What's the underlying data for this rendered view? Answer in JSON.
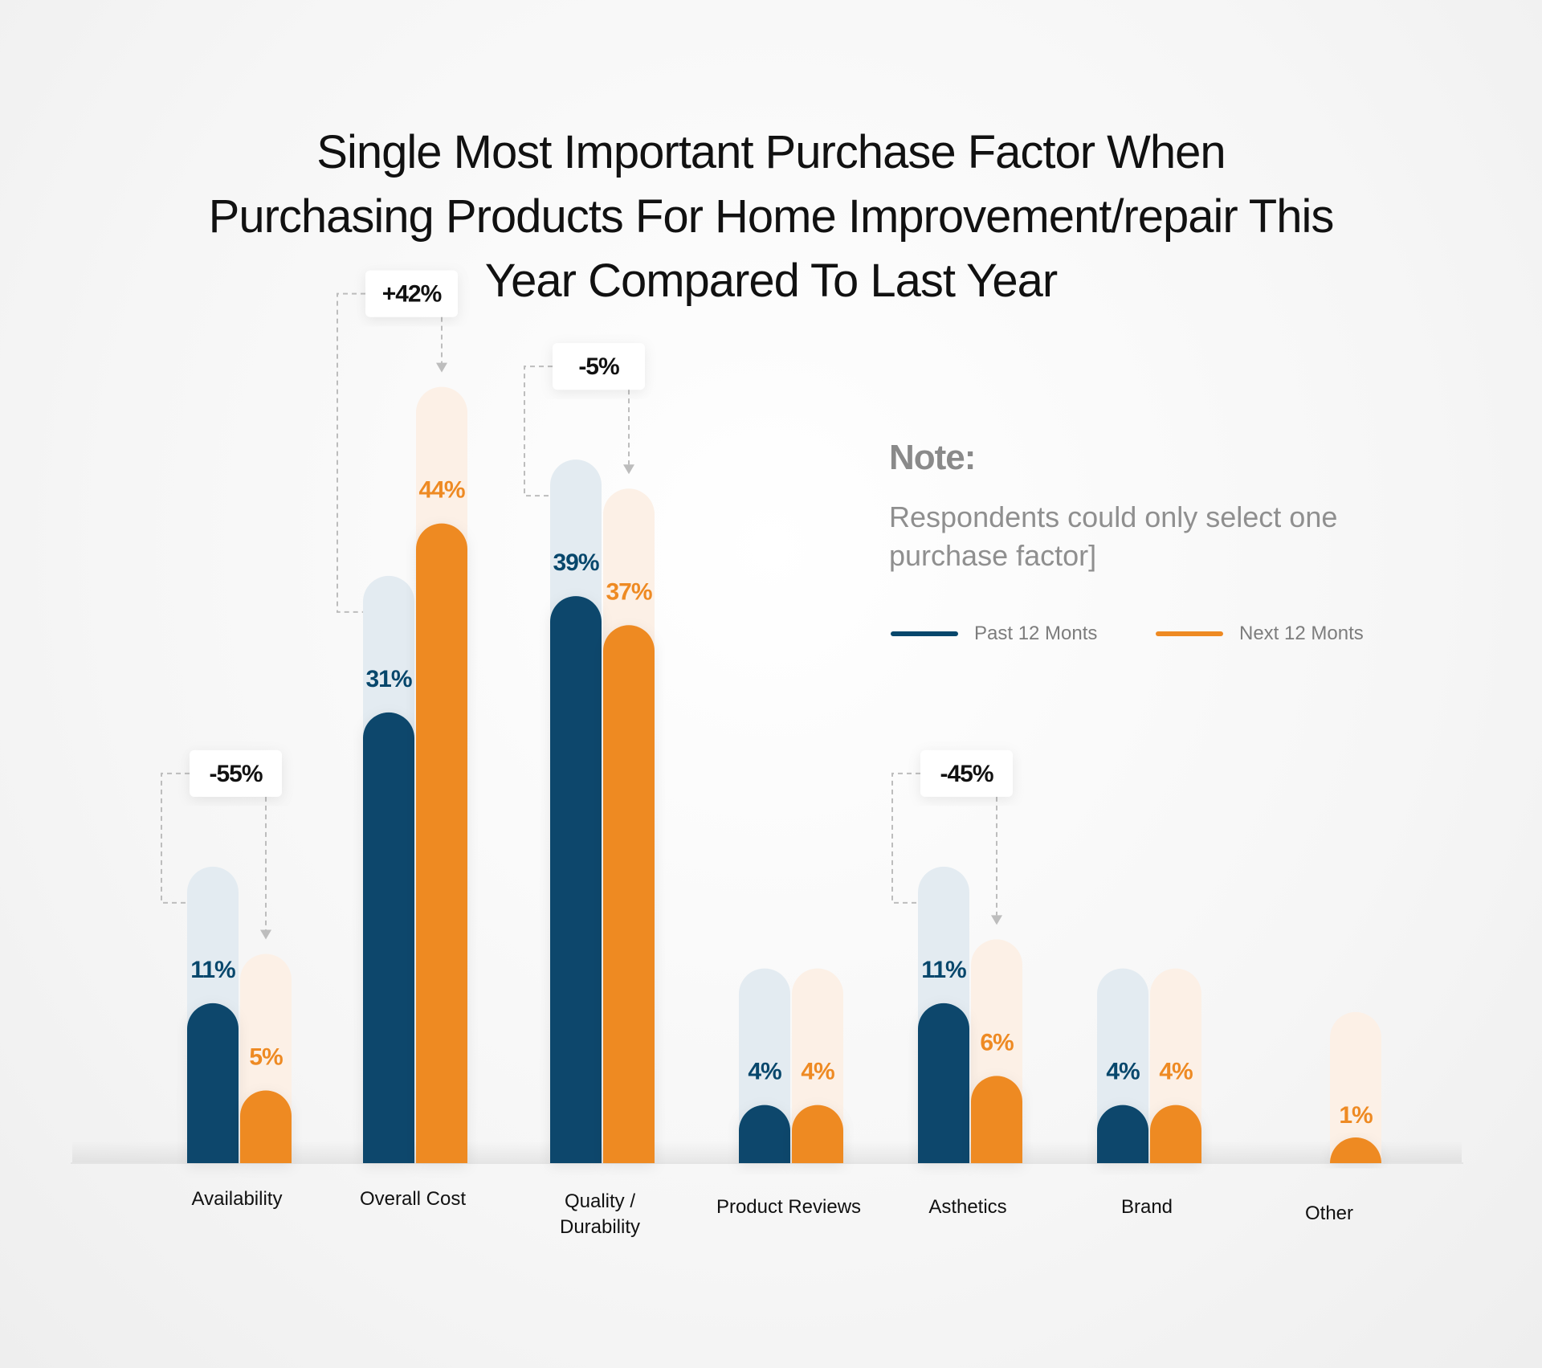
{
  "title_lines": [
    "Single Most Important Purchase Factor When",
    "Purchasing Products For Home Improvement/repair This",
    "Year Compared To Last Year"
  ],
  "note": {
    "heading": "Note:",
    "body": "Respondents could only select one purchase factor]"
  },
  "colors": {
    "past": "#07476c",
    "past_track": "#e3ebf1",
    "next": "#ee8a23",
    "next_track": "#fcf0e6",
    "label": "#111111"
  },
  "chart_data": {
    "type": "bar",
    "title": "Single Most Important Purchase Factor When Purchasing Products For Home Improvement/repair This Year Compared To Last Year",
    "xlabel": "",
    "ylabel": "",
    "ylim": [
      0,
      50
    ],
    "grid": false,
    "legend_position": "top-right",
    "categories": [
      [
        "Availability"
      ],
      [
        "Overall Cost"
      ],
      [
        "Quality /",
        "Durability"
      ],
      [
        "Product Reviews"
      ],
      [
        "Asthetics"
      ],
      [
        "Brand"
      ],
      [
        "Other"
      ]
    ],
    "series": [
      {
        "name": "Past 12 Monts",
        "values": [
          11,
          31,
          39,
          4,
          11,
          4,
          null
        ],
        "labels": [
          "11%",
          "31%",
          "39%",
          "4%",
          "11%",
          "4%",
          ""
        ]
      },
      {
        "name": "Next 12 Monts",
        "values": [
          5,
          44,
          37,
          4,
          6,
          4,
          1
        ],
        "labels": [
          "5%",
          "44%",
          "37%",
          "4%",
          "6%",
          "4%",
          "1%"
        ]
      }
    ],
    "change_annotations": [
      {
        "category": "Availability",
        "label": "-55%"
      },
      {
        "category": "Overall Cost",
        "label": "+42%"
      },
      {
        "category": "Quality / Durability",
        "label": "-5%"
      },
      {
        "category": "Asthetics",
        "label": "-45%"
      }
    ]
  }
}
